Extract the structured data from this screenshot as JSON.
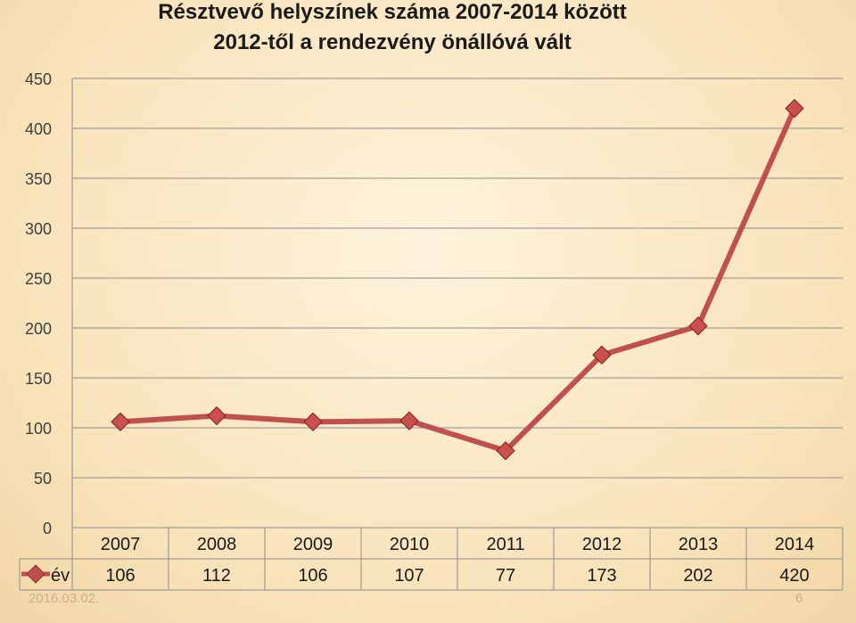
{
  "chart_data": {
    "type": "line",
    "title": "Résztvevő helyszínek száma 2007-2014 között",
    "subtitle": "2012-től a rendezvény önállóvá vált",
    "categories": [
      "2007",
      "2008",
      "2009",
      "2010",
      "2011",
      "2012",
      "2013",
      "2014"
    ],
    "series": [
      {
        "name": "év",
        "values": [
          106,
          112,
          106,
          107,
          77,
          173,
          202,
          420
        ],
        "color": "#c0504d"
      }
    ],
    "ylim": [
      0,
      450
    ],
    "yticks": [
      0,
      50,
      100,
      150,
      200,
      250,
      300,
      350,
      400,
      450
    ],
    "grid": true,
    "data_table": true
  },
  "footer": {
    "date": "2016.03.02.",
    "page": "6"
  }
}
